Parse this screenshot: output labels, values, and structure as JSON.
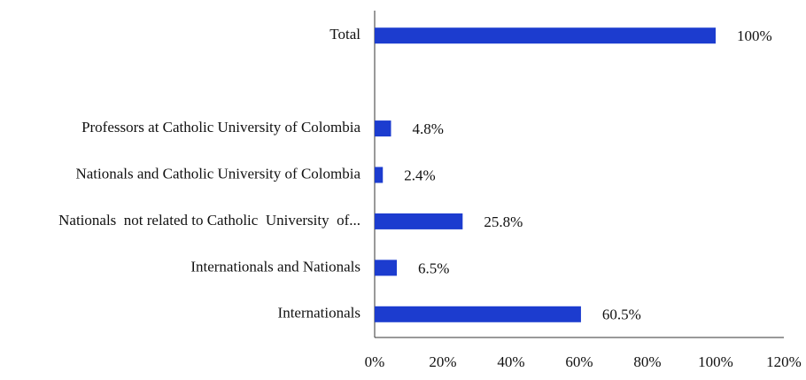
{
  "chart_data": {
    "type": "bar",
    "orientation": "horizontal",
    "categories": [
      "Total",
      null,
      "Professors at Catholic University of Colombia",
      "Nationals and Catholic University of Colombia",
      "Nationals  not related to Catholic  University  of...",
      "Internationals and Nationals",
      "Internationals"
    ],
    "values": [
      100,
      null,
      4.8,
      2.4,
      25.8,
      6.5,
      60.5
    ],
    "value_labels": [
      "100%",
      null,
      "4.8%",
      "2.4%",
      "25.8%",
      "6.5%",
      "60.5%"
    ],
    "color": "#1c3ccf",
    "xlim": [
      0,
      120
    ],
    "xticks": [
      {
        "value": 0,
        "label": "0%"
      },
      {
        "value": 20,
        "label": "20%"
      },
      {
        "value": 40,
        "label": "40%"
      },
      {
        "value": 60,
        "label": "60%"
      },
      {
        "value": 80,
        "label": "80%"
      },
      {
        "value": 100,
        "label": "100%"
      },
      {
        "value": 120,
        "label": "120%"
      }
    ],
    "grid": false
  }
}
